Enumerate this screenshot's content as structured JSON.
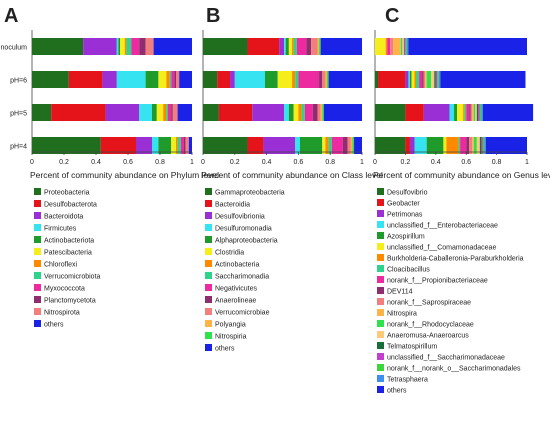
{
  "figure": {
    "panel_letters": [
      "A",
      "B",
      "C"
    ]
  },
  "chart_data": [
    {
      "panel": "A",
      "type": "bar",
      "orientation": "horizontal",
      "stacked": true,
      "categories": [
        "Inoculum",
        "pH=6",
        "pH=5",
        "pH=4"
      ],
      "xlabel": "Percent of community abundance on Phylum level",
      "xlim": [
        0,
        1
      ],
      "xticks": [
        "0",
        "0.2",
        "0.4",
        "0.6",
        "0.8",
        "1"
      ],
      "legend_position": "below",
      "series": [
        {
          "name": "Proteobacteria",
          "color": "#1f6f1f",
          "values": [
            0.32,
            0.23,
            0.12,
            0.43
          ]
        },
        {
          "name": "Desulfobacterota",
          "color": "#e4141a",
          "values": [
            0.0,
            0.21,
            0.34,
            0.22
          ]
        },
        {
          "name": "Bacteroidota",
          "color": "#9b2fd6",
          "values": [
            0.21,
            0.09,
            0.21,
            0.1
          ]
        },
        {
          "name": "Firmicutes",
          "color": "#36e3f0",
          "values": [
            0.01,
            0.18,
            0.08,
            0.04
          ]
        },
        {
          "name": "Actinobacteriota",
          "color": "#1e9b2a",
          "values": [
            0.01,
            0.08,
            0.03,
            0.08
          ]
        },
        {
          "name": "Patescibacteria",
          "color": "#f5ee1a",
          "values": [
            0.03,
            0.05,
            0.04,
            0.03
          ]
        },
        {
          "name": "Chloroflexi",
          "color": "#ff8a00",
          "values": [
            0.01,
            0.02,
            0.02,
            0.01
          ]
        },
        {
          "name": "Verrucomicrobiota",
          "color": "#2fd48c",
          "values": [
            0.03,
            0.01,
            0.01,
            0.02
          ]
        },
        {
          "name": "Myxococcota",
          "color": "#ee2aa0",
          "values": [
            0.05,
            0.02,
            0.02,
            0.02
          ]
        },
        {
          "name": "Planctomycetota",
          "color": "#8e2e6e",
          "values": [
            0.04,
            0.01,
            0.01,
            0.01
          ]
        },
        {
          "name": "Nitrospirota",
          "color": "#f37e7e",
          "values": [
            0.05,
            0.02,
            0.03,
            0.02
          ]
        },
        {
          "name": "others",
          "color": "#1a22e8",
          "values": [
            0.24,
            0.08,
            0.09,
            0.02
          ]
        }
      ]
    },
    {
      "panel": "B",
      "type": "bar",
      "orientation": "horizontal",
      "stacked": true,
      "categories": [
        "Inoculum",
        "pH=6",
        "pH=5",
        "pH=4"
      ],
      "xlabel": "Percent of community abundance on Class level",
      "xlim": [
        0,
        1
      ],
      "xticks": [
        "0",
        "0.2",
        "0.4",
        "0.6",
        "0.8",
        "1"
      ],
      "legend_position": "below",
      "series": [
        {
          "name": "Gammaproteobacteria",
          "color": "#1f6f1f",
          "values": [
            0.28,
            0.09,
            0.1,
            0.28
          ]
        },
        {
          "name": "Bacteroidia",
          "color": "#e4141a",
          "values": [
            0.2,
            0.08,
            0.21,
            0.1
          ]
        },
        {
          "name": "Desulfovibrionia",
          "color": "#9b2fd6",
          "values": [
            0.03,
            0.03,
            0.2,
            0.2
          ]
        },
        {
          "name": "Desulfuromonadia",
          "color": "#36e3f0",
          "values": [
            0.01,
            0.19,
            0.03,
            0.03
          ]
        },
        {
          "name": "Alphaproteobacteria",
          "color": "#1e9b2a",
          "values": [
            0.02,
            0.08,
            0.03,
            0.14
          ]
        },
        {
          "name": "Clostridia",
          "color": "#f5ee1a",
          "values": [
            0.02,
            0.09,
            0.03,
            0.02
          ]
        },
        {
          "name": "Actinobacteria",
          "color": "#ff8a00",
          "values": [
            0.01,
            0.02,
            0.02,
            0.02
          ]
        },
        {
          "name": "Saccharimonadia",
          "color": "#2fd48c",
          "values": [
            0.02,
            0.02,
            0.02,
            0.02
          ]
        },
        {
          "name": "Negativicutes",
          "color": "#ee2aa0",
          "values": [
            0.06,
            0.13,
            0.05,
            0.07
          ]
        },
        {
          "name": "Anaerolineae",
          "color": "#8e2e6e",
          "values": [
            0.03,
            0.02,
            0.03,
            0.03
          ]
        },
        {
          "name": "Verrucomicrobiae",
          "color": "#f37e7e",
          "values": [
            0.04,
            0.02,
            0.02,
            0.02
          ]
        },
        {
          "name": "Polyangia",
          "color": "#ffb44a",
          "values": [
            0.01,
            0.01,
            0.01,
            0.01
          ]
        },
        {
          "name": "Nitrospiria",
          "color": "#2ee24b",
          "values": [
            0.01,
            0.01,
            0.01,
            0.01
          ]
        },
        {
          "name": "others",
          "color": "#1a22e8",
          "values": [
            0.26,
            0.21,
            0.24,
            0.05
          ]
        }
      ]
    },
    {
      "panel": "C",
      "type": "bar",
      "orientation": "horizontal",
      "stacked": true,
      "categories": [
        "Inoculum",
        "pH=6",
        "pH=5",
        "pH=4"
      ],
      "xlabel": "Percent of community abundance on Genus level",
      "xlim": [
        0,
        1
      ],
      "xticks": [
        "0",
        "0.2",
        "0.4",
        "0.6",
        "0.8",
        "1"
      ],
      "legend_position": "below",
      "series": [
        {
          "name": "Desulfovibrio",
          "color": "#1f6f1f",
          "values": [
            0.0,
            0.02,
            0.2,
            0.2
          ]
        },
        {
          "name": "Geobacter",
          "color": "#e4141a",
          "values": [
            0.0,
            0.18,
            0.12,
            0.03
          ]
        },
        {
          "name": "Petrimonas",
          "color": "#9b2fd6",
          "values": [
            0.0,
            0.02,
            0.17,
            0.03
          ]
        },
        {
          "name": "unclassified_f__Enterobacteriaceae",
          "color": "#36e3f0",
          "values": [
            0.0,
            0.01,
            0.03,
            0.08
          ]
        },
        {
          "name": "Azospirillum",
          "color": "#1e9b2a",
          "values": [
            0.0,
            0.01,
            0.02,
            0.11
          ]
        },
        {
          "name": "unclassified_f__Comamonadaceae",
          "color": "#f5ee1a",
          "values": [
            0.07,
            0.02,
            0.04,
            0.02
          ]
        },
        {
          "name": "Burkholderia-Caballeronia-Paraburkholderia",
          "color": "#ff8a00",
          "values": [
            0.01,
            0.01,
            0.01,
            0.08
          ]
        },
        {
          "name": "Cloacibacillus",
          "color": "#2fd48c",
          "values": [
            0.0,
            0.02,
            0.01,
            0.01
          ]
        },
        {
          "name": "norank_f__Propionibacteriaceae",
          "color": "#ee2aa0",
          "values": [
            0.02,
            0.02,
            0.02,
            0.04
          ]
        },
        {
          "name": "DEV114",
          "color": "#8e2e6e",
          "values": [
            0.0,
            0.01,
            0.01,
            0.02
          ]
        },
        {
          "name": "norank_f__Saprospiraceae",
          "color": "#f37e7e",
          "values": [
            0.02,
            0.01,
            0.01,
            0.02
          ]
        },
        {
          "name": "Nitrospira",
          "color": "#ffb44a",
          "values": [
            0.05,
            0.01,
            0.01,
            0.01
          ]
        },
        {
          "name": "norank_f__Rhodocyclaceae",
          "color": "#2ee24b",
          "values": [
            0.01,
            0.03,
            0.01,
            0.02
          ]
        },
        {
          "name": "Anaeromusa-Anaeroarcus",
          "color": "#ffc97a",
          "values": [
            0.01,
            0.02,
            0.01,
            0.02
          ]
        },
        {
          "name": "Telmatospirillum",
          "color": "#1a6e3a",
          "values": [
            0.0,
            0.01,
            0.01,
            0.01
          ]
        },
        {
          "name": "unclassified_f__Saccharimonadaceae",
          "color": "#c23fd0",
          "values": [
            0.01,
            0.01,
            0.01,
            0.01
          ]
        },
        {
          "name": "norank_f__norank_o__Saccharimonadales",
          "color": "#3bd63b",
          "values": [
            0.01,
            0.01,
            0.01,
            0.01
          ]
        },
        {
          "name": "Tetrasphaera",
          "color": "#3f8ff0",
          "values": [
            0.01,
            0.01,
            0.01,
            0.01
          ]
        },
        {
          "name": "others",
          "color": "#1a22e8",
          "values": [
            0.78,
            0.56,
            0.33,
            0.27
          ]
        }
      ]
    }
  ]
}
